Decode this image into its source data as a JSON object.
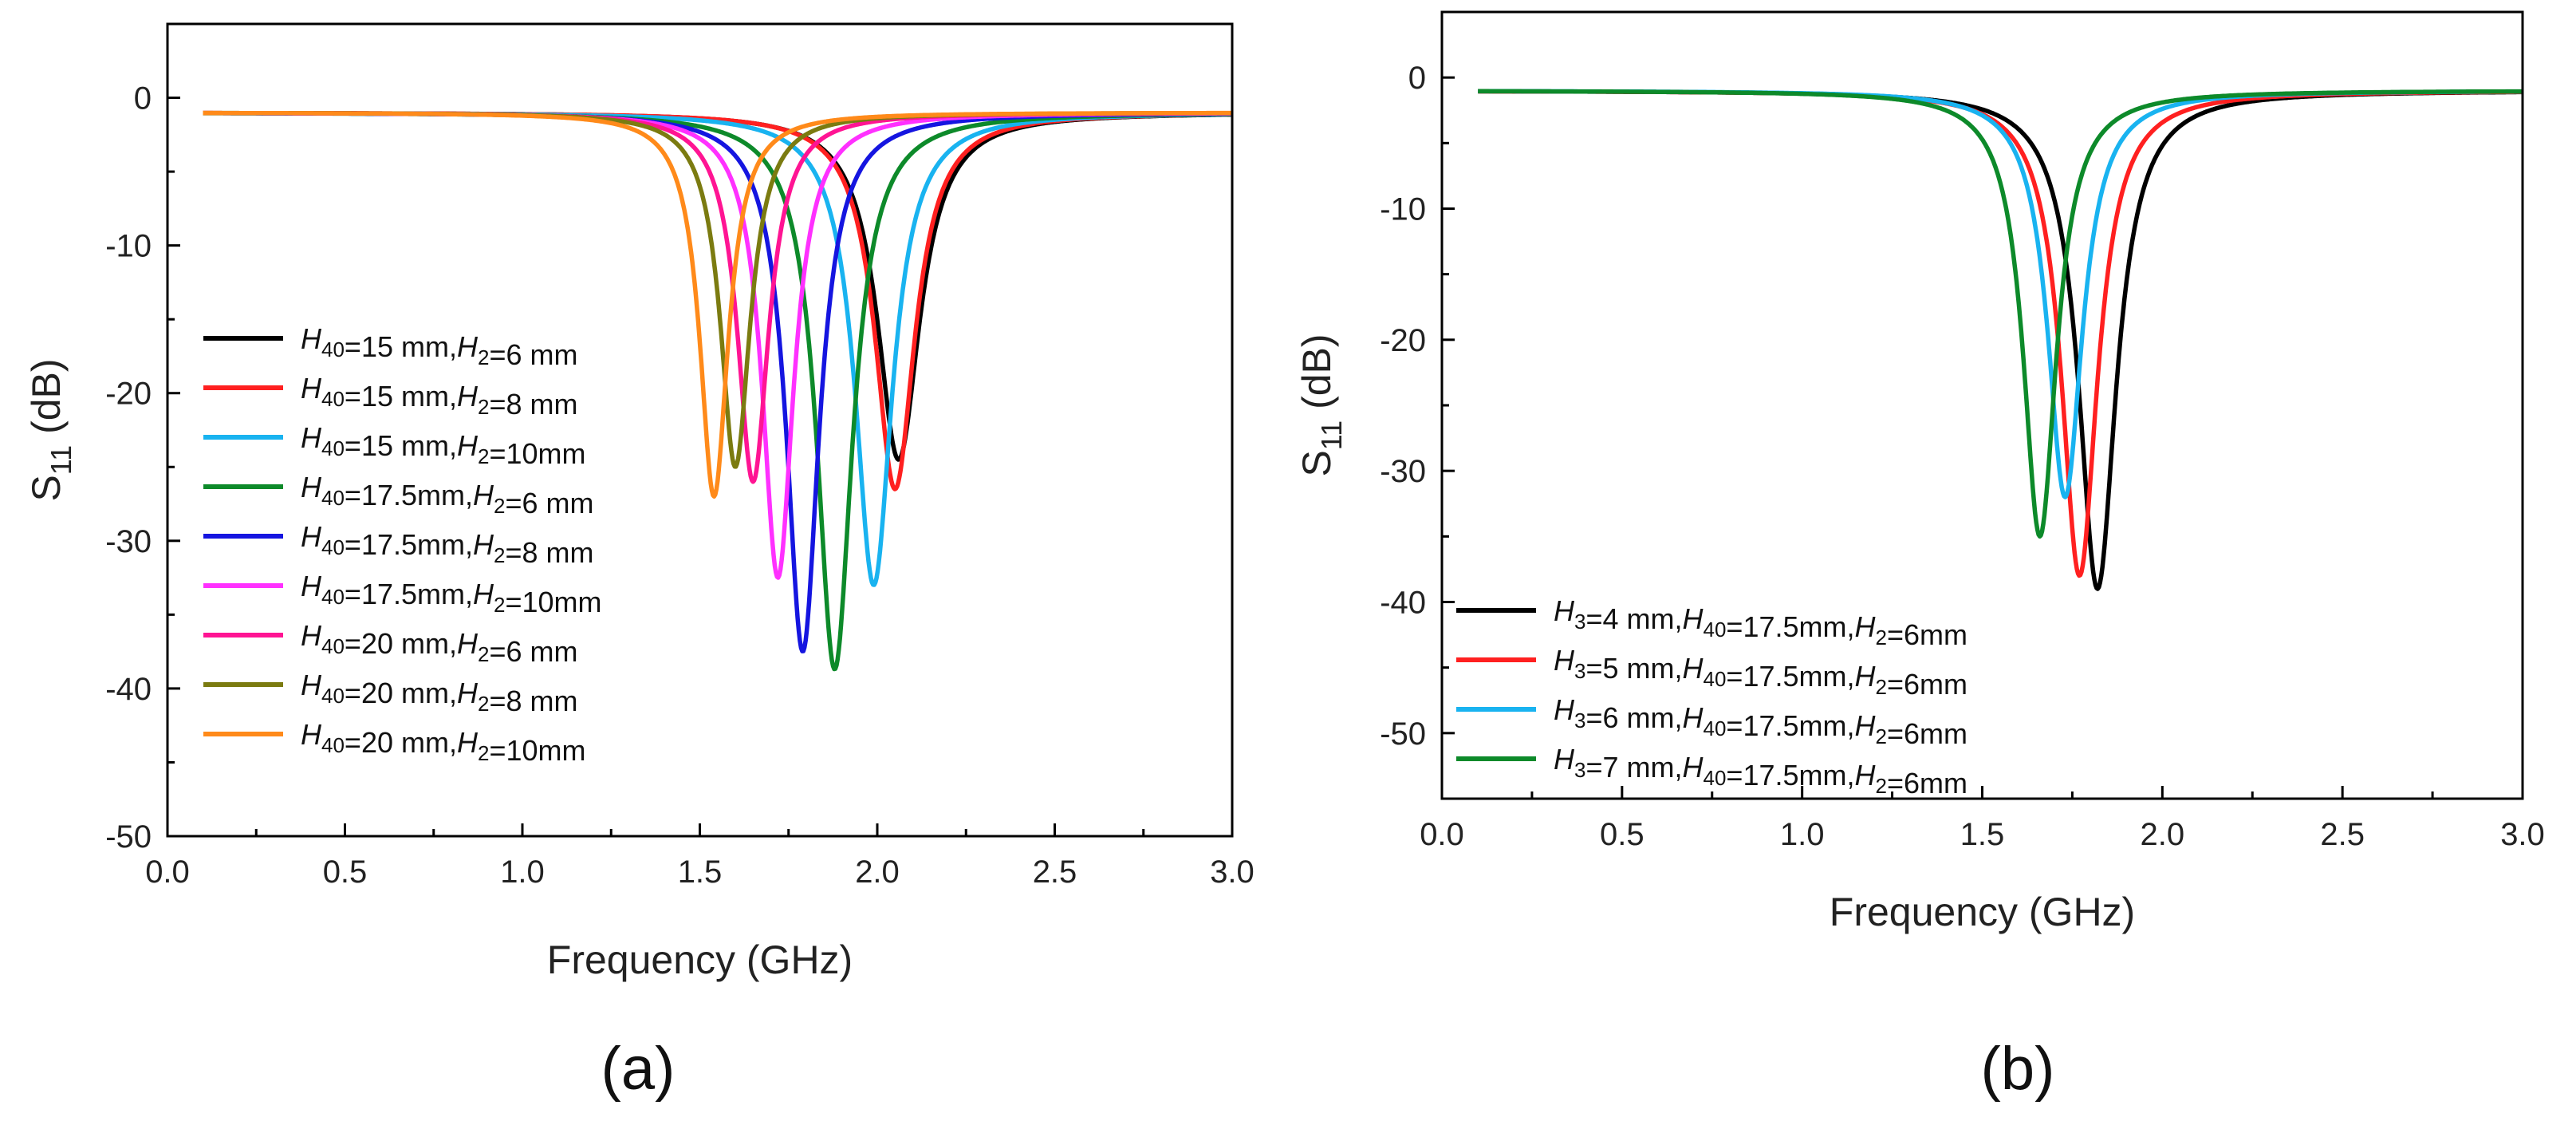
{
  "chart_data": [
    {
      "type": "line",
      "caption": "(a)",
      "xlabel": "Frequency (GHz)",
      "ylabel_main": "S",
      "ylabel_sub": "11",
      "ylabel_unit": " (dB)",
      "xlim": [
        0.0,
        3.0
      ],
      "ylim": [
        -50,
        5
      ],
      "xticks": [
        "0.0",
        "0.5",
        "1.0",
        "1.5",
        "2.0",
        "2.5",
        "3.0"
      ],
      "yticks": [
        "0",
        "-10",
        "-20",
        "-30",
        "-40",
        "-50"
      ],
      "legend_position": "lower-left",
      "series": [
        {
          "name": "black",
          "color": "#000000",
          "f0": 2.06,
          "depth": -24.5,
          "bw": 0.3,
          "labels": [
            [
              "H",
              "40"
            ],
            [
              "=15  mm,"
            ],
            [
              "H",
              "2"
            ],
            [
              "=6 mm"
            ]
          ]
        },
        {
          "name": "red",
          "color": "#ff2020",
          "f0": 2.05,
          "depth": -26.5,
          "bw": 0.28,
          "labels": [
            [
              "H",
              "40"
            ],
            [
              "=15  mm,"
            ],
            [
              "H",
              "2"
            ],
            [
              "=8 mm"
            ]
          ]
        },
        {
          "name": "light-blue",
          "color": "#19b3f0",
          "f0": 1.99,
          "depth": -33.0,
          "bw": 0.26,
          "labels": [
            [
              "H",
              "40"
            ],
            [
              "=15  mm,"
            ],
            [
              "H",
              "2"
            ],
            [
              "=10mm"
            ]
          ]
        },
        {
          "name": "green",
          "color": "#0d8a2a",
          "f0": 1.88,
          "depth": -38.7,
          "bw": 0.25,
          "labels": [
            [
              "H",
              "40"
            ],
            [
              "=17.5mm,"
            ],
            [
              "H",
              "2"
            ],
            [
              "=6 mm"
            ]
          ]
        },
        {
          "name": "blue",
          "color": "#1515e0",
          "f0": 1.79,
          "depth": -37.5,
          "bw": 0.23,
          "labels": [
            [
              "H",
              "40"
            ],
            [
              "=17.5mm,"
            ],
            [
              "H",
              "2"
            ],
            [
              "=8 mm"
            ]
          ]
        },
        {
          "name": "magenta",
          "color": "#ff30ff",
          "f0": 1.72,
          "depth": -32.5,
          "bw": 0.22,
          "labels": [
            [
              "H",
              "40"
            ],
            [
              "=17.5mm,"
            ],
            [
              "H",
              "2"
            ],
            [
              "=10mm"
            ]
          ]
        },
        {
          "name": "pink",
          "color": "#ff1493",
          "f0": 1.65,
          "depth": -26.0,
          "bw": 0.22,
          "labels": [
            [
              "H",
              "40"
            ],
            [
              "=20  mm,"
            ],
            [
              "H",
              "2"
            ],
            [
              "=6 mm"
            ]
          ]
        },
        {
          "name": "olive",
          "color": "#7b7b10",
          "f0": 1.6,
          "depth": -25.0,
          "bw": 0.21,
          "labels": [
            [
              "H",
              "40"
            ],
            [
              "=20  mm,"
            ],
            [
              "H",
              "2"
            ],
            [
              "=8 mm"
            ]
          ]
        },
        {
          "name": "orange",
          "color": "#ff8a1a",
          "f0": 1.54,
          "depth": -27.0,
          "bw": 0.2,
          "labels": [
            [
              "H",
              "40"
            ],
            [
              "=20  mm,"
            ],
            [
              "H",
              "2"
            ],
            [
              "=10mm"
            ]
          ]
        }
      ]
    },
    {
      "type": "line",
      "caption": "(b)",
      "xlabel": "Frequency (GHz)",
      "ylabel_main": "S",
      "ylabel_sub": "11",
      "ylabel_unit": " (dB)",
      "xlim": [
        0.0,
        3.0
      ],
      "ylim": [
        -55,
        5
      ],
      "xticks": [
        "0.0",
        "0.5",
        "1.0",
        "1.5",
        "2.0",
        "2.5",
        "3.0"
      ],
      "yticks": [
        "0",
        "-10",
        "-20",
        "-30",
        "-40",
        "-50"
      ],
      "legend_position": "lower-left",
      "series": [
        {
          "name": "black",
          "color": "#000000",
          "f0": 1.82,
          "depth": -39.0,
          "bw": 0.26,
          "labels": [
            [
              "H",
              "3"
            ],
            [
              "=4 mm,"
            ],
            [
              "H",
              "40"
            ],
            [
              "=17.5mm,"
            ],
            [
              "H",
              "2"
            ],
            [
              "=6mm"
            ]
          ]
        },
        {
          "name": "red",
          "color": "#ff2020",
          "f0": 1.77,
          "depth": -38.0,
          "bw": 0.25,
          "labels": [
            [
              "H",
              "3"
            ],
            [
              "=5 mm,"
            ],
            [
              "H",
              "40"
            ],
            [
              "=17.5mm,"
            ],
            [
              "H",
              "2"
            ],
            [
              "=6mm"
            ]
          ]
        },
        {
          "name": "light-blue",
          "color": "#19b3f0",
          "f0": 1.73,
          "depth": -32.0,
          "bw": 0.24,
          "labels": [
            [
              "H",
              "3"
            ],
            [
              "=6 mm,"
            ],
            [
              "H",
              "40"
            ],
            [
              "=17.5mm,"
            ],
            [
              "H",
              "2"
            ],
            [
              "=6mm"
            ]
          ]
        },
        {
          "name": "green",
          "color": "#0d8a2a",
          "f0": 1.66,
          "depth": -35.0,
          "bw": 0.23,
          "labels": [
            [
              "H",
              "3"
            ],
            [
              "=7 mm,"
            ],
            [
              "H",
              "40"
            ],
            [
              "=17.5mm,"
            ],
            [
              "H",
              "2"
            ],
            [
              "=6mm"
            ]
          ]
        }
      ]
    }
  ]
}
